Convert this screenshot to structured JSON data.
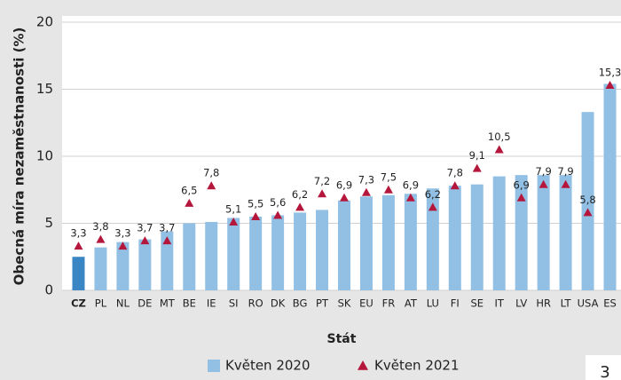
{
  "chart_data": {
    "type": "bar_scatter",
    "x_label": "Stát",
    "y_label": "Obecná míra nezaměstnanosti (%)",
    "categories": [
      "CZ",
      "PL",
      "NL",
      "DE",
      "MT",
      "BE",
      "IE",
      "SI",
      "RO",
      "DK",
      "BG",
      "PT",
      "SK",
      "EU",
      "FR",
      "AT",
      "LU",
      "FI",
      "SE",
      "IT",
      "LV",
      "HR",
      "LT",
      "USA",
      "ES"
    ],
    "series": [
      {
        "name": "Květen 2020",
        "type": "bar",
        "color": "#92c0e4",
        "highlight_color": "#3a86c4",
        "values": [
          2.5,
          3.2,
          3.6,
          3.8,
          4.4,
          5.0,
          5.1,
          5.4,
          5.5,
          5.6,
          5.8,
          6.0,
          6.7,
          7.0,
          7.1,
          7.2,
          7.6,
          7.8,
          7.9,
          8.5,
          8.6,
          8.6,
          8.6,
          13.3,
          15.4
        ]
      },
      {
        "name": "Květen 2021",
        "type": "scatter",
        "color": "#b5163b",
        "values": [
          3.3,
          3.8,
          3.3,
          3.7,
          3.7,
          6.5,
          7.8,
          5.1,
          5.5,
          5.6,
          6.2,
          7.2,
          6.9,
          7.3,
          7.5,
          6.9,
          6.2,
          7.8,
          9.1,
          10.5,
          6.9,
          7.9,
          7.9,
          5.8,
          15.3
        ],
        "value_labels": [
          "3,3",
          "3,8",
          "3,3",
          "3,7",
          "3,7",
          "6,5",
          "7,8",
          "5,1",
          "5,5",
          "5,6",
          "6,2",
          "7,2",
          "6,9",
          "7,3",
          "7,5",
          "6,9",
          "6,2",
          "7,8",
          "9,1",
          "10,5",
          "6,9",
          "7,9",
          "7,9",
          "5,8",
          "15,3"
        ]
      }
    ],
    "highlight_category": "CZ",
    "ylim": [
      0,
      20
    ],
    "yticks": [
      0,
      5,
      10,
      15,
      20
    ],
    "grid": true,
    "page_number": "3"
  }
}
